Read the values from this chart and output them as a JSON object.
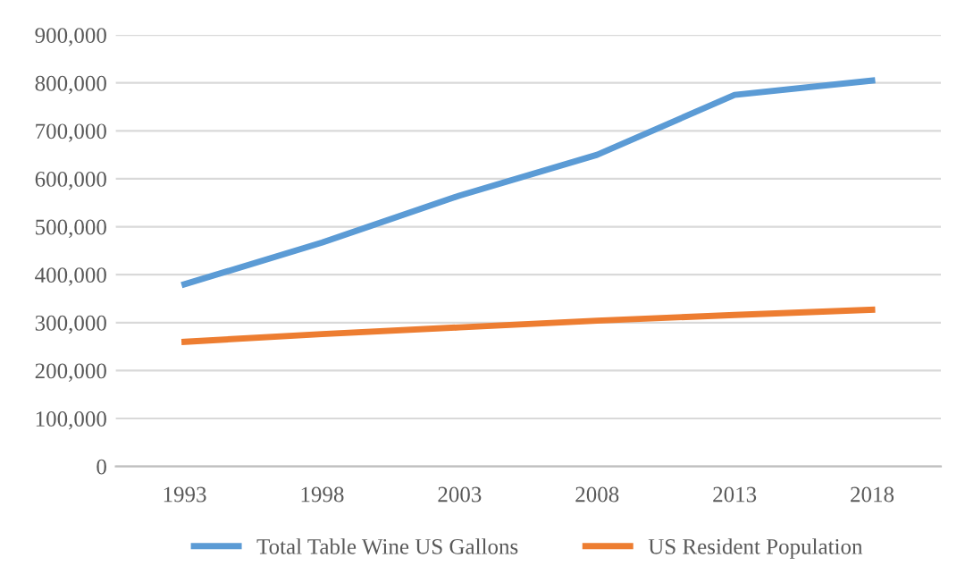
{
  "chart_data": {
    "type": "line",
    "categories": [
      "1993",
      "1998",
      "2003",
      "2008",
      "2013",
      "2018"
    ],
    "series": [
      {
        "name": "Total Table Wine US Gallons",
        "color": "#5b9bd5",
        "values": [
          380000,
          467000,
          565000,
          650000,
          775000,
          805000
        ]
      },
      {
        "name": "US Resident Population",
        "color": "#ed7d31",
        "values": [
          260000,
          276000,
          290000,
          304000,
          316000,
          327000
        ]
      }
    ],
    "ylim": [
      0,
      900000
    ],
    "yticks": [
      {
        "value": 0,
        "label": "0"
      },
      {
        "value": 100000,
        "label": "100,000"
      },
      {
        "value": 200000,
        "label": "200,000"
      },
      {
        "value": 300000,
        "label": "300,000"
      },
      {
        "value": 400000,
        "label": "400,000"
      },
      {
        "value": 500000,
        "label": "500,000"
      },
      {
        "value": 600000,
        "label": "600,000"
      },
      {
        "value": 700000,
        "label": "700,000"
      },
      {
        "value": 800000,
        "label": "800,000"
      },
      {
        "value": 900000,
        "label": "900,000"
      }
    ],
    "grid": "y",
    "legend": "bottom",
    "marker": "none",
    "line_style": "solid"
  }
}
